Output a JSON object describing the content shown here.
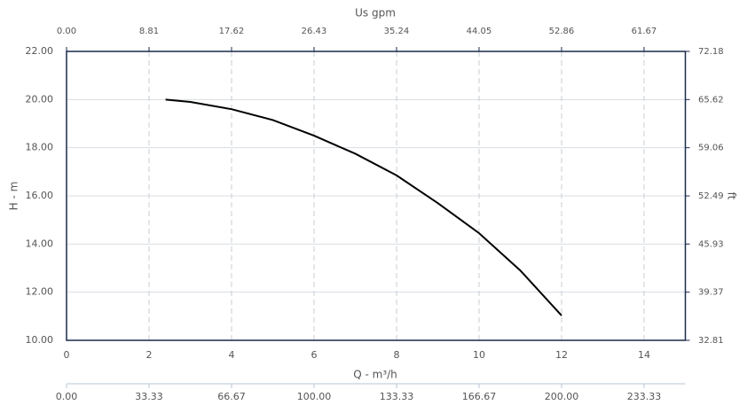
{
  "chart_data": {
    "type": "line",
    "x_label": "Q - m³/h",
    "x2_label": "Us gpm",
    "y_label": "H - m",
    "y2_label": "ft",
    "x": [
      2.4,
      3,
      4,
      5,
      6,
      7,
      8,
      9,
      10,
      11,
      12
    ],
    "values": [
      20.0,
      19.9,
      19.6,
      19.15,
      18.5,
      17.75,
      16.85,
      15.7,
      14.45,
      12.9,
      11.03
    ],
    "color": "#000000",
    "xlim": [
      0,
      15
    ],
    "xticks": [
      0,
      2,
      4,
      6,
      8,
      10,
      12,
      14
    ],
    "x2lim": [
      0,
      66.08
    ],
    "x2ticks": [
      {
        "value": 0,
        "label": "0.00"
      },
      8.81,
      17.62,
      26.43,
      35.24,
      44.05,
      52.86,
      61.67
    ],
    "x3lim": [
      0,
      250
    ],
    "x3ticks": [
      {
        "value": 0,
        "label": "0.00"
      },
      33.33,
      66.67,
      {
        "value": 100,
        "label": "100.00"
      },
      133.33,
      166.67,
      {
        "value": 200,
        "label": "200.00"
      },
      233.33
    ],
    "ylim": [
      10,
      22
    ],
    "yticks": [
      {
        "value": 10,
        "label": "10.00"
      },
      {
        "value": 12,
        "label": "12.00"
      },
      {
        "value": 14,
        "label": "14.00"
      },
      {
        "value": 16,
        "label": "16.00"
      },
      {
        "value": 18,
        "label": "18.00"
      },
      {
        "value": 20,
        "label": "20.00"
      },
      {
        "value": 22,
        "label": "22.00"
      }
    ],
    "y2lim": [
      32.81,
      72.18
    ],
    "y2ticks": [
      32.81,
      39.37,
      45.93,
      52.49,
      59.06,
      65.62,
      72.18
    ],
    "grid": true
  }
}
